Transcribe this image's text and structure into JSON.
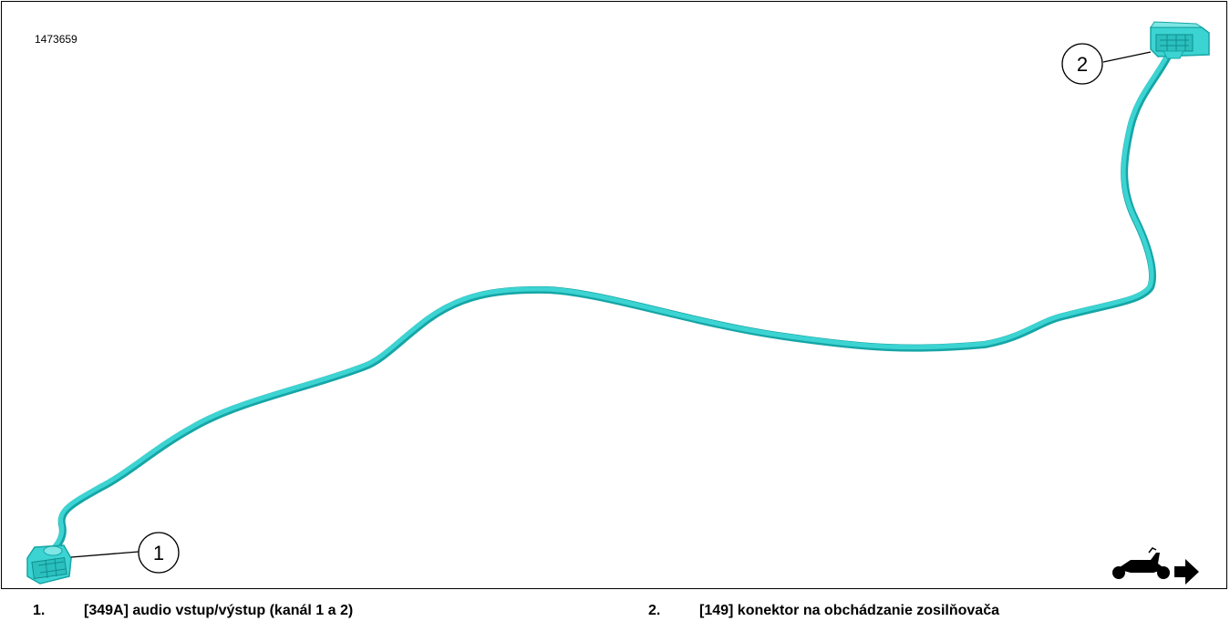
{
  "figure_id": "1473659",
  "callouts": [
    {
      "number": "1"
    },
    {
      "number": "2"
    }
  ],
  "legend": [
    {
      "number": "1.",
      "text": "[349A] audio vstup/výstup (kanál 1 a 2)"
    },
    {
      "number": "2.",
      "text": "[149] konektor na obchádzanie zosilňovača"
    }
  ],
  "orientation_icon": "motorcycle-forward-arrow-icon",
  "colors": {
    "harness": "#3cd4d2",
    "harness_shade": "#16a5a6",
    "frame": "#000000"
  }
}
